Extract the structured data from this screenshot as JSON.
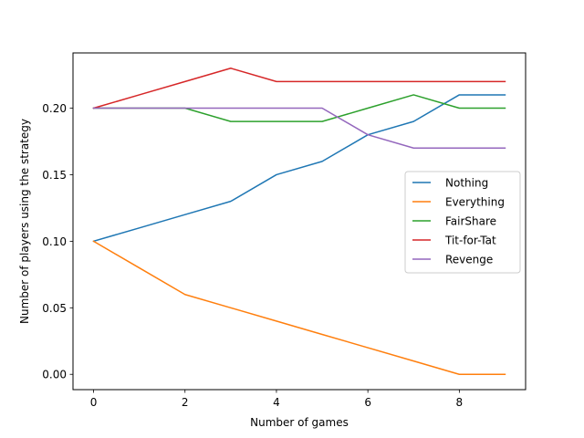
{
  "chart_data": {
    "type": "line",
    "title": "",
    "xlabel": "Number of games",
    "ylabel": "Number of players using the strategy",
    "xlim": [
      -0.45,
      9.45
    ],
    "ylim": [
      -0.0115,
      0.2415
    ],
    "x": [
      0,
      1,
      2,
      3,
      4,
      5,
      6,
      7,
      8,
      9
    ],
    "x_ticks": [
      0,
      2,
      4,
      6,
      8
    ],
    "x_tick_labels": [
      "0",
      "2",
      "4",
      "6",
      "8"
    ],
    "y_ticks": [
      0.0,
      0.05,
      0.1,
      0.15,
      0.2
    ],
    "y_tick_labels": [
      "0.00",
      "0.05",
      "0.10",
      "0.15",
      "0.20"
    ],
    "grid": false,
    "legend_position": "center-right",
    "series": [
      {
        "name": "Nothing",
        "color": "#1f77b4",
        "values": [
          0.1,
          0.11,
          0.12,
          0.13,
          0.15,
          0.16,
          0.18,
          0.19,
          0.21,
          0.21
        ]
      },
      {
        "name": "Everything",
        "color": "#ff7f0e",
        "values": [
          0.1,
          0.08,
          0.06,
          0.05,
          0.04,
          0.03,
          0.02,
          0.01,
          0.0,
          0.0
        ]
      },
      {
        "name": "FairShare",
        "color": "#2ca02c",
        "values": [
          0.2,
          0.2,
          0.2,
          0.19,
          0.19,
          0.19,
          0.2,
          0.21,
          0.2,
          0.2
        ]
      },
      {
        "name": "Tit-for-Tat",
        "color": "#d62728",
        "values": [
          0.2,
          0.21,
          0.22,
          0.23,
          0.22,
          0.22,
          0.22,
          0.22,
          0.22,
          0.22
        ]
      },
      {
        "name": "Revenge",
        "color": "#9467bd",
        "values": [
          0.2,
          0.2,
          0.2,
          0.2,
          0.2,
          0.2,
          0.18,
          0.17,
          0.17,
          0.17
        ]
      }
    ]
  }
}
